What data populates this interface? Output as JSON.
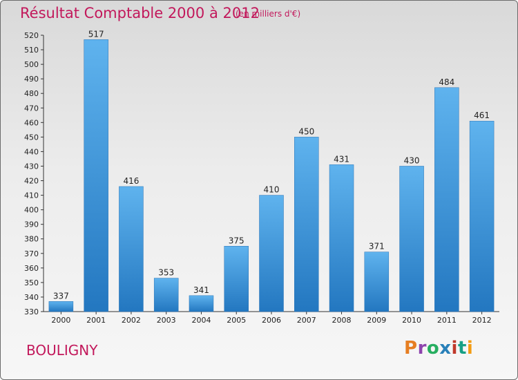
{
  "title": "Résultat Comptable 2000 à 2012",
  "subtitle": "(en milliers d'€)",
  "commune": "BOULIGNY",
  "logo": {
    "text": "Proxiti",
    "colors": [
      "#e67e22",
      "#8e44ad",
      "#27ae60",
      "#2980b9",
      "#c0392b",
      "#16a085",
      "#f39c12"
    ]
  },
  "colors": {
    "bar": "#3a8fd8",
    "title": "#c2185b"
  },
  "chart_data": {
    "type": "bar",
    "categories": [
      "2000",
      "2001",
      "2002",
      "2003",
      "2004",
      "2005",
      "2006",
      "2007",
      "2008",
      "2009",
      "2010",
      "2011",
      "2012"
    ],
    "values": [
      337,
      517,
      416,
      353,
      341,
      375,
      410,
      450,
      431,
      371,
      430,
      484,
      461
    ],
    "ylim": [
      330,
      520
    ],
    "yticks": [
      330,
      340,
      350,
      360,
      370,
      380,
      390,
      400,
      410,
      420,
      430,
      440,
      450,
      460,
      470,
      480,
      490,
      500,
      510,
      520
    ],
    "grid": false
  }
}
